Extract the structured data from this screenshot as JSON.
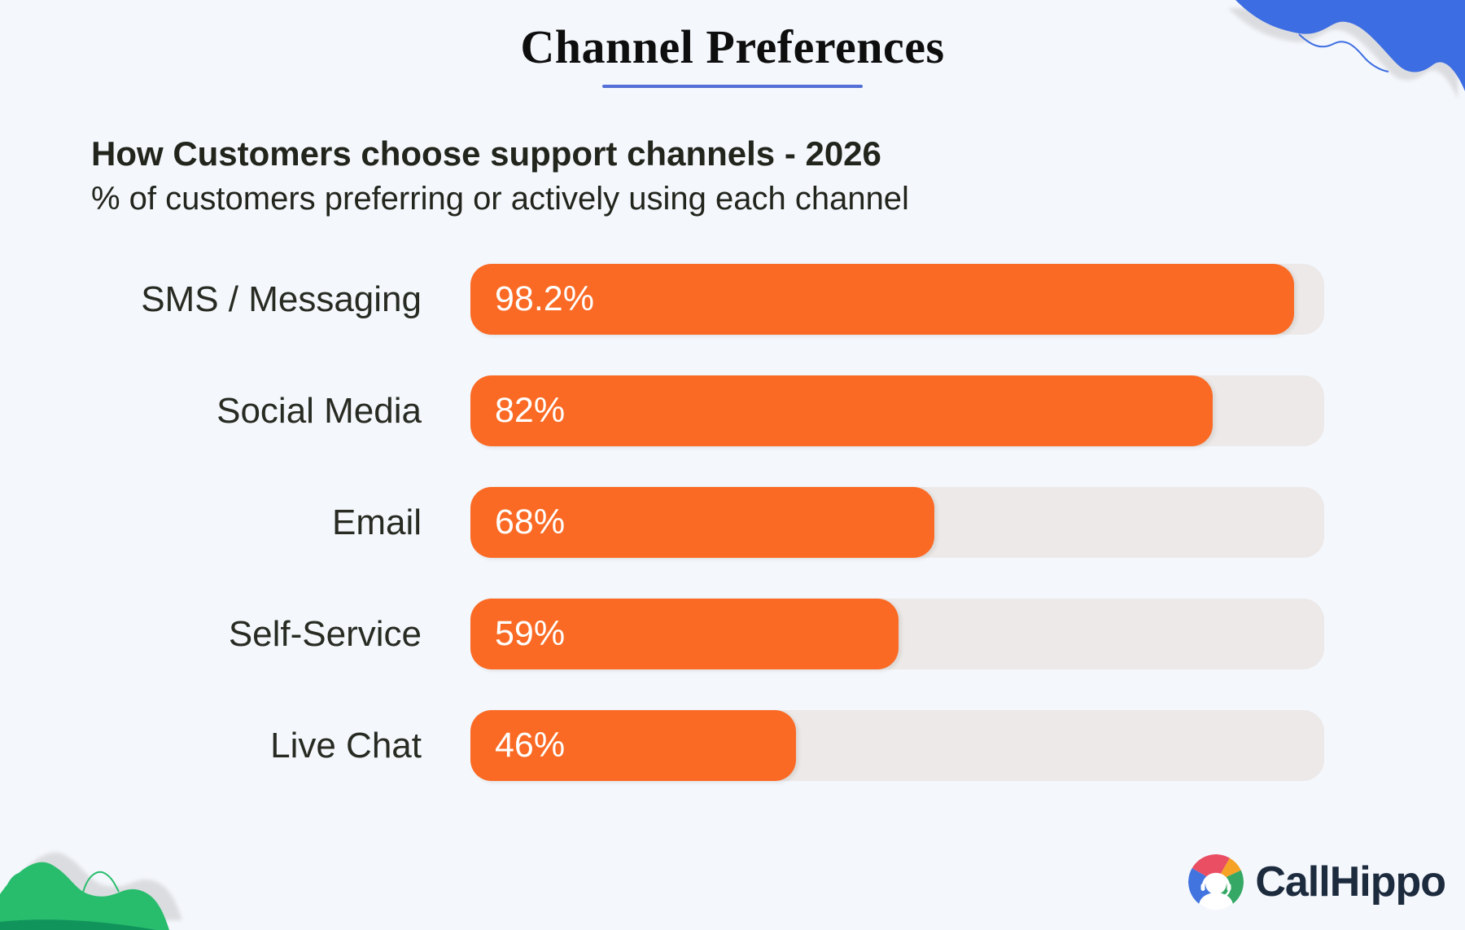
{
  "chart_data": {
    "type": "bar",
    "orientation": "horizontal",
    "title": "Channel Preferences",
    "subtitle": "How Customers choose support channels - 2026",
    "note": "% of customers preferring or actively using each channel",
    "categories": [
      "SMS / Messaging",
      "Social Media",
      "Email",
      "Self-Service",
      "Live Chat"
    ],
    "values": [
      98.2,
      82,
      68,
      59,
      46
    ],
    "value_labels": [
      "98.2%",
      "82%",
      "68%",
      "59%",
      "46%"
    ],
    "xlim": [
      0,
      100
    ],
    "grid": false,
    "legend": false,
    "value_label_position": "inside-left",
    "display_width_pct": [
      96.5,
      86.9,
      54.3,
      50.1,
      38.1
    ]
  },
  "branding": {
    "logo_text": "CallHippo"
  },
  "colors": {
    "background": "#F4F7FC",
    "title_text": "#0E0E0E",
    "title_underline": "#5470D6",
    "heading_text": "#21251C",
    "label_text": "#272B22",
    "bar": "#FA6A24",
    "bar_track": "#ECE9E8",
    "value_text": "#FFFFFF",
    "decor_blue": "#3C6DE2",
    "decor_green": "#28BD6C",
    "decor_green_dark": "#11945C",
    "decor_shadow": "#D9DADD",
    "logo_text": "#1D2B3E"
  },
  "logo_mark": {
    "blue": "#4274DF",
    "red": "#EA4E63",
    "orange": "#F5A226",
    "green": "#34A864"
  }
}
